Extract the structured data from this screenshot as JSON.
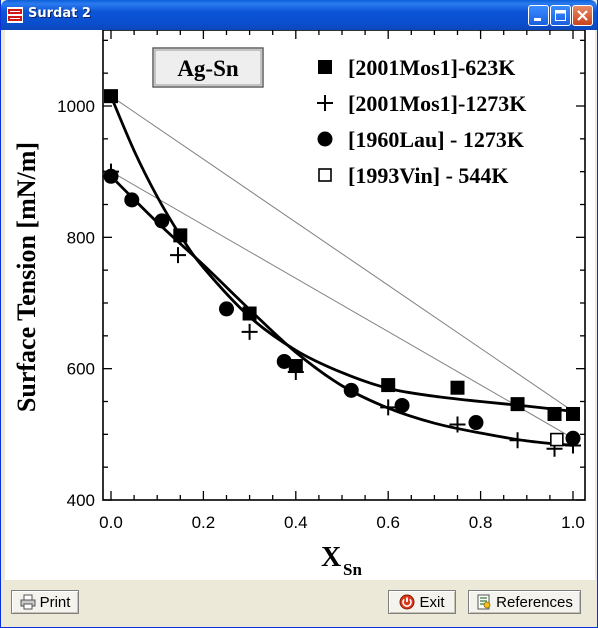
{
  "window": {
    "title": "Surdat 2"
  },
  "buttons": {
    "print_label": "Print",
    "exit_label": "Exit",
    "references_label": "References"
  },
  "colors": {
    "titlebar": "#0a4fcf",
    "data": "#000000",
    "reference_line": "#808080"
  },
  "chart_data": {
    "type": "scatter",
    "system_label": "Ag-Sn",
    "ylabel": "Surface Tension [mN/m]",
    "xlabel_main": "X",
    "xlabel_sub": "Sn",
    "xlim": [
      0.0,
      1.0
    ],
    "ylim": [
      400,
      1100
    ],
    "x_ticks": [
      "0.0",
      "0.2",
      "0.4",
      "0.6",
      "0.8",
      "1.0"
    ],
    "x_tick_values": [
      0.0,
      0.2,
      0.4,
      0.6,
      0.8,
      1.0
    ],
    "y_ticks": [
      "400",
      "600",
      "800",
      "1000"
    ],
    "y_tick_values": [
      400,
      600,
      800,
      1000
    ],
    "legend_position": "top-right",
    "series": [
      {
        "name": "[2001Mos1]-623K",
        "marker": "filled-square",
        "points": [
          [
            0.0,
            1015
          ],
          [
            0.15,
            803
          ],
          [
            0.3,
            684
          ],
          [
            0.4,
            604
          ],
          [
            0.6,
            575
          ],
          [
            0.75,
            571
          ],
          [
            0.88,
            546
          ],
          [
            0.96,
            531
          ],
          [
            1.0,
            531
          ]
        ]
      },
      {
        "name": "[2001Mos1]-1273K",
        "marker": "plus",
        "points": [
          [
            0.0,
            900
          ],
          [
            0.145,
            773
          ],
          [
            0.3,
            656
          ],
          [
            0.4,
            595
          ],
          [
            0.6,
            541
          ],
          [
            0.75,
            515
          ],
          [
            0.88,
            491
          ],
          [
            0.96,
            478
          ],
          [
            1.0,
            483
          ]
        ]
      },
      {
        "name": "[1960Lau] - 1273K",
        "marker": "filled-circle",
        "points": [
          [
            0.0,
            893
          ],
          [
            0.045,
            857
          ],
          [
            0.11,
            825
          ],
          [
            0.25,
            691
          ],
          [
            0.375,
            611
          ],
          [
            0.52,
            567
          ],
          [
            0.63,
            544
          ],
          [
            0.79,
            518
          ],
          [
            1.0,
            494
          ]
        ]
      },
      {
        "name": "[1993Vin] - 544K",
        "marker": "open-square",
        "points": [
          [
            0.965,
            492
          ]
        ]
      }
    ],
    "fit_curves": [
      {
        "points": [
          [
            0.0,
            1015
          ],
          [
            0.05,
            932
          ],
          [
            0.1,
            862
          ],
          [
            0.15,
            803
          ],
          [
            0.2,
            754
          ],
          [
            0.3,
            679
          ],
          [
            0.4,
            628
          ],
          [
            0.5,
            594
          ],
          [
            0.6,
            570
          ],
          [
            0.7,
            558
          ],
          [
            0.8,
            550
          ],
          [
            0.9,
            543
          ],
          [
            1.0,
            535
          ]
        ]
      },
      {
        "points": [
          [
            0.0,
            893
          ],
          [
            0.1,
            823
          ],
          [
            0.2,
            758
          ],
          [
            0.3,
            690
          ],
          [
            0.4,
            625
          ],
          [
            0.5,
            574
          ],
          [
            0.6,
            540
          ],
          [
            0.7,
            517
          ],
          [
            0.8,
            502
          ],
          [
            0.9,
            490
          ],
          [
            1.0,
            483
          ]
        ]
      }
    ],
    "reference_lines": [
      {
        "points": [
          [
            0.0,
            1015
          ],
          [
            1.0,
            535
          ]
        ]
      },
      {
        "points": [
          [
            0.0,
            900
          ],
          [
            1.0,
            494
          ]
        ]
      }
    ]
  }
}
